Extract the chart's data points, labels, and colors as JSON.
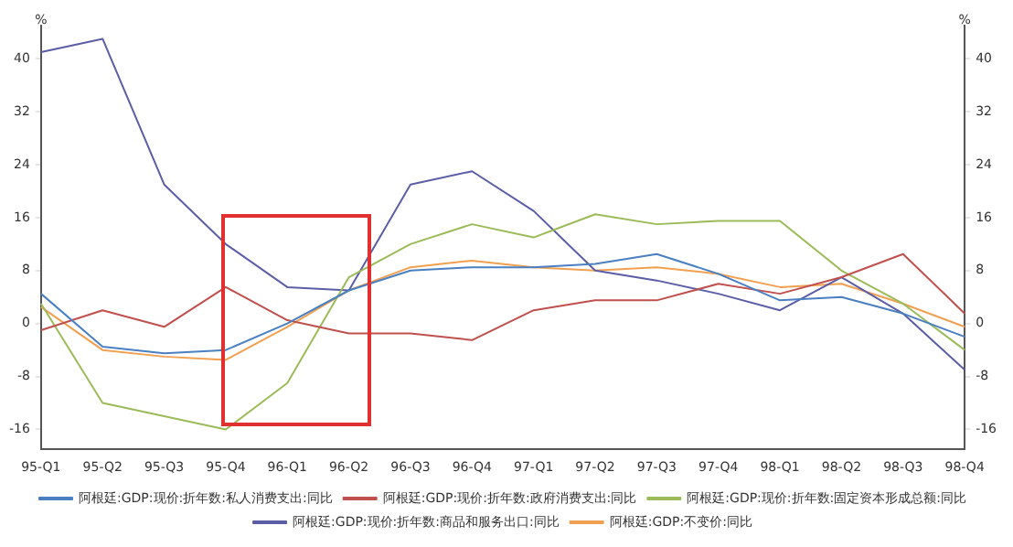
{
  "chart_data": {
    "type": "line",
    "categories": [
      "95-Q1",
      "95-Q2",
      "95-Q3",
      "95-Q4",
      "96-Q1",
      "96-Q2",
      "96-Q3",
      "96-Q4",
      "97-Q1",
      "97-Q2",
      "97-Q3",
      "97-Q4",
      "98-Q1",
      "98-Q2",
      "98-Q3",
      "98-Q4"
    ],
    "ylabel": "%",
    "y2label": "%",
    "series": [
      {
        "name": "阿根廷:GDP:现价:折年数:私人消费支出:同比",
        "color": "#4a7fc1",
        "values": [
          4.5,
          -3.5,
          -4.5,
          -4,
          0,
          5,
          8,
          8.5,
          8.5,
          9,
          10.5,
          7.5,
          3.5,
          4,
          1.5,
          -2
        ]
      },
      {
        "name": "阿根廷:GDP:现价:折年数:政府消费支出:同比",
        "color": "#c0504d",
        "values": [
          -1,
          2,
          -0.5,
          5.5,
          0.5,
          -1.5,
          -1.5,
          -2.5,
          2,
          3.5,
          3.5,
          6,
          4.5,
          7,
          10.5,
          1.5
        ]
      },
      {
        "name": "阿根廷:GDP:现价:折年数:固定资本形成总额:同比",
        "color": "#9bbb59",
        "values": [
          3,
          -12,
          -14,
          -16,
          -9,
          7,
          12,
          15,
          13,
          16.5,
          15,
          15.5,
          15.5,
          8,
          3,
          -4
        ]
      },
      {
        "name": "阿根廷:GDP:现价:折年数:商品和服务出口:同比",
        "color": "#5b5ea6",
        "values": [
          41,
          43,
          21,
          12,
          5.5,
          5,
          21,
          23,
          17,
          8,
          6.5,
          4.5,
          2,
          7,
          1.5,
          -7
        ]
      },
      {
        "name": "阿根廷:GDP:不变价:同比",
        "color": "#f0a050",
        "values": [
          2.5,
          -4,
          -5,
          -5.5,
          -0.5,
          5,
          8.5,
          9.5,
          8.5,
          8,
          8.5,
          7.5,
          5.5,
          6,
          3,
          -0.5
        ]
      }
    ],
    "ylim": [
      -19,
      45
    ],
    "yticks": [
      -16,
      -8,
      0,
      8,
      16,
      24,
      32,
      40
    ],
    "y2lim": [
      -19,
      45
    ],
    "y2ticks": [
      -16,
      -8,
      0,
      8,
      16,
      24,
      32,
      40
    ],
    "grid": false,
    "legend": "bottom",
    "marker": "none",
    "line_style": "solid"
  }
}
